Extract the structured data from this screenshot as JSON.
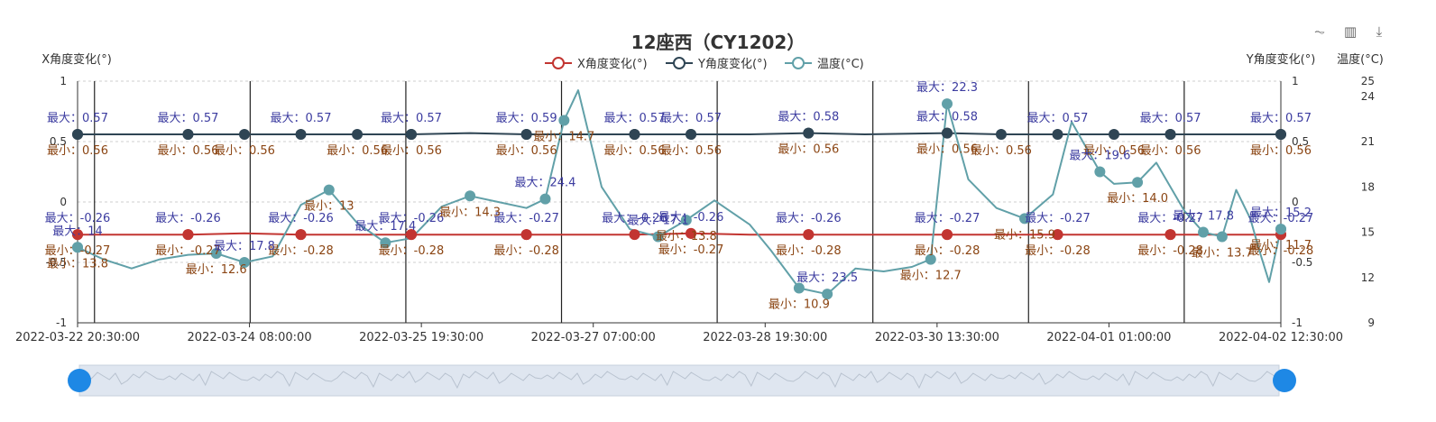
{
  "chart_data": {
    "type": "line",
    "title": "12座西（CY1202）",
    "legend": [
      "X角度变化(°)",
      "Y角度变化(°)",
      "温度(°C)"
    ],
    "legend_position": "top-center",
    "y_left_label": "X角度变化(°)",
    "y_right_label": "Y角度变化(°)",
    "y_right2_label": "温度(°C)",
    "ylim_left": [
      -1,
      1
    ],
    "ylim_right": [
      -1,
      1
    ],
    "ylim_temp": [
      9,
      25
    ],
    "y_left_ticks": [
      "1",
      "0.5",
      "0",
      "-0.5",
      "-1"
    ],
    "y_right_ticks": [
      "1",
      "0.5",
      "0",
      "-0.5",
      "-1"
    ],
    "y_temp_ticks": [
      "25",
      "24",
      "21",
      "18",
      "15",
      "12",
      "9"
    ],
    "x_tick_labels": [
      "2022-03-22 20:30:00",
      "2022-03-24 08:00:00",
      "2022-03-25 19:30:00",
      "2022-03-27 07:00:00",
      "2022-03-28 19:30:00",
      "2022-03-30 13:30:00",
      "2022-04-01 01:00:00",
      "2022-04-02 12:30:00"
    ],
    "x_range": [
      "2022-03-22 20:30:00",
      "2022-04-02 12:30:00"
    ],
    "grid": "horizontal dashed",
    "series": [
      {
        "name": "X角度变化(°)",
        "color": "#c23531",
        "points": [
          [
            "2022-03-22 20:30:00",
            -0.27
          ],
          [
            "2022-03-23 08:00:00",
            -0.27
          ],
          [
            "2022-03-23 20:00:00",
            -0.27
          ],
          [
            "2022-03-24 08:00:00",
            -0.26
          ],
          [
            "2022-03-24 20:00:00",
            -0.27
          ],
          [
            "2022-03-25 08:00:00",
            -0.27
          ],
          [
            "2022-03-25 19:30:00",
            -0.27
          ],
          [
            "2022-03-26 08:00:00",
            -0.27
          ],
          [
            "2022-03-26 20:00:00",
            -0.27
          ],
          [
            "2022-03-27 07:00:00",
            -0.27
          ],
          [
            "2022-03-27 19:00:00",
            -0.27
          ],
          [
            "2022-03-28 07:00:00",
            -0.26
          ],
          [
            "2022-03-28 19:30:00",
            -0.27
          ],
          [
            "2022-03-29 08:00:00",
            -0.27
          ],
          [
            "2022-03-29 20:00:00",
            -0.27
          ],
          [
            "2022-03-30 13:30:00",
            -0.27
          ],
          [
            "2022-03-31 01:00:00",
            -0.27
          ],
          [
            "2022-03-31 13:00:00",
            -0.27
          ],
          [
            "2022-04-01 01:00:00",
            -0.27
          ],
          [
            "2022-04-01 13:00:00",
            -0.27
          ],
          [
            "2022-04-02 00:00:00",
            -0.27
          ],
          [
            "2022-04-02 12:30:00",
            -0.27
          ]
        ],
        "max_labels": [
          "最大：-0.26",
          "最大：-0.26",
          "最大：-0.26",
          "最大：-0.26",
          "最大：-0.27",
          "最大：-0.26",
          "最大：-0.26",
          "最大：-0.26",
          "最大：-0.27",
          "最大：-0.27",
          "最大：-0.27",
          "最大：-0.27"
        ],
        "min_labels": [
          "最小：-0.27",
          "最小：-0.27",
          "最小：-0.28",
          "最小：-0.28",
          "最小：-0.28",
          "最小：-0.27",
          "最小：-0.28",
          "最小：-0.28",
          "最小：-0.28",
          "最小：-0.28",
          "最小：-0.28"
        ]
      },
      {
        "name": "Y角度变化(°)",
        "color": "#2f4554",
        "points": [
          [
            "2022-03-22 20:30:00",
            0.56
          ],
          [
            "2022-03-23 08:00:00",
            0.56
          ],
          [
            "2022-03-23 20:00:00",
            0.56
          ],
          [
            "2022-03-24 08:00:00",
            0.56
          ],
          [
            "2022-03-24 20:00:00",
            0.56
          ],
          [
            "2022-03-25 08:00:00",
            0.56
          ],
          [
            "2022-03-25 19:30:00",
            0.56
          ],
          [
            "2022-03-26 08:00:00",
            0.57
          ],
          [
            "2022-03-26 20:00:00",
            0.56
          ],
          [
            "2022-03-27 07:00:00",
            0.56
          ],
          [
            "2022-03-27 19:00:00",
            0.56
          ],
          [
            "2022-03-28 07:00:00",
            0.56
          ],
          [
            "2022-03-28 19:30:00",
            0.56
          ],
          [
            "2022-03-29 08:00:00",
            0.57
          ],
          [
            "2022-03-29 20:00:00",
            0.56
          ],
          [
            "2022-03-30 13:30:00",
            0.57
          ],
          [
            "2022-03-31 01:00:00",
            0.56
          ],
          [
            "2022-03-31 13:00:00",
            0.56
          ],
          [
            "2022-04-01 01:00:00",
            0.56
          ],
          [
            "2022-04-01 13:00:00",
            0.56
          ],
          [
            "2022-04-02 00:00:00",
            0.56
          ],
          [
            "2022-04-02 12:30:00",
            0.56
          ]
        ],
        "max_labels": [
          "最大：0.57",
          "最大：0.57",
          "最大：0.57",
          "最大：0.57",
          "最大：0.59",
          "最大：0.57",
          "最大：0.57",
          "最大：0.58",
          "最大：0.58",
          "最大：0.57",
          "最大：0.57",
          "最大：0.57"
        ],
        "min_labels": [
          "最小：0.56",
          "最小：0.56",
          "最小：0.56",
          "最小：0.56",
          "最小：0.56",
          "最小：0.56",
          "最小：0.56",
          "最小：0.56",
          "最小：0.56",
          "最小：0.56",
          "最小：0.56",
          "最小：0.56",
          "最小：0.56",
          "最小：0.56"
        ]
      },
      {
        "name": "温度(°C)",
        "color": "#61a0a8",
        "points": [
          [
            "2022-03-22 20:30:00",
            14.0
          ],
          [
            "2022-03-23 02:00:00",
            13.2
          ],
          [
            "2022-03-23 08:00:00",
            12.6
          ],
          [
            "2022-03-23 14:00:00",
            13.2
          ],
          [
            "2022-03-23 20:00:00",
            13.5
          ],
          [
            "2022-03-24 02:00:00",
            13.6
          ],
          [
            "2022-03-24 08:00:00",
            13.0
          ],
          [
            "2022-03-24 14:00:00",
            13.4
          ],
          [
            "2022-03-24 20:00:00",
            16.8
          ],
          [
            "2022-03-25 02:00:00",
            17.8
          ],
          [
            "2022-03-25 08:00:00",
            15.6
          ],
          [
            "2022-03-25 14:00:00",
            14.3
          ],
          [
            "2022-03-25 19:30:00",
            14.6
          ],
          [
            "2022-03-26 02:00:00",
            16.7
          ],
          [
            "2022-03-26 08:00:00",
            17.4
          ],
          [
            "2022-03-26 14:00:00",
            17.0
          ],
          [
            "2022-03-26 20:00:00",
            16.6
          ],
          [
            "2022-03-27 00:00:00",
            17.2
          ],
          [
            "2022-03-27 04:00:00",
            22.4
          ],
          [
            "2022-03-27 07:00:00",
            24.4
          ],
          [
            "2022-03-27 12:00:00",
            18.0
          ],
          [
            "2022-03-27 18:00:00",
            15.2
          ],
          [
            "2022-03-28 00:00:00",
            14.7
          ],
          [
            "2022-03-28 06:00:00",
            15.8
          ],
          [
            "2022-03-28 12:00:00",
            17.1
          ],
          [
            "2022-03-28 19:30:00",
            15.5
          ],
          [
            "2022-03-29 00:00:00",
            13.8
          ],
          [
            "2022-03-29 06:00:00",
            11.3
          ],
          [
            "2022-03-29 12:00:00",
            10.9
          ],
          [
            "2022-03-29 18:00:00",
            12.6
          ],
          [
            "2022-03-30 00:00:00",
            12.4
          ],
          [
            "2022-03-30 06:00:00",
            12.7
          ],
          [
            "2022-03-30 10:00:00",
            13.2
          ],
          [
            "2022-03-30 13:30:00",
            23.5
          ],
          [
            "2022-03-30 18:00:00",
            18.5
          ],
          [
            "2022-03-31 00:00:00",
            16.6
          ],
          [
            "2022-03-31 06:00:00",
            15.9
          ],
          [
            "2022-03-31 12:00:00",
            17.5
          ],
          [
            "2022-03-31 16:00:00",
            22.3
          ],
          [
            "2022-03-31 22:00:00",
            19.0
          ],
          [
            "2022-04-01 01:00:00",
            18.2
          ],
          [
            "2022-04-01 06:00:00",
            18.3
          ],
          [
            "2022-04-01 10:00:00",
            19.6
          ],
          [
            "2022-04-01 16:00:00",
            16.4
          ],
          [
            "2022-04-01 20:00:00",
            15.0
          ],
          [
            "2022-04-02 00:00:00",
            14.7
          ],
          [
            "2022-04-02 03:00:00",
            17.8
          ],
          [
            "2022-04-02 06:00:00",
            15.9
          ],
          [
            "2022-04-02 08:00:00",
            13.7
          ],
          [
            "2022-04-02 10:00:00",
            11.7
          ],
          [
            "2022-04-02 12:30:00",
            15.2
          ]
        ],
        "max_labels": [
          "最大：14",
          "最大：17.8",
          "最大：17.4",
          "最大：24.4",
          "最大：17.1",
          "最大：23.5",
          "最大：22.3",
          "最大：19.6",
          "最大：17.8",
          "最大：15.2"
        ],
        "min_labels": [
          "最小：13.8",
          "最小：12.6",
          "最小：13",
          "最小：14.3",
          "最小：14.7",
          "最小：13.8",
          "最小：10.9",
          "最小：12.7",
          "最小：15.9",
          "最小：14.0",
          "最小：13.7",
          "最小：11.7"
        ]
      }
    ]
  },
  "toolbar": {
    "icons": [
      "line-chart-icon",
      "bar-chart-icon",
      "download-icon"
    ],
    "glyphs": [
      "⏦",
      "▥",
      "⤓"
    ]
  },
  "colors": {
    "x_series": "#c23531",
    "y_series": "#2f4554",
    "temperature": "#61a0a8",
    "label_max": "#3c3ca0",
    "label_min": "#8b4513",
    "zoom_handle": "#1e88e5"
  }
}
